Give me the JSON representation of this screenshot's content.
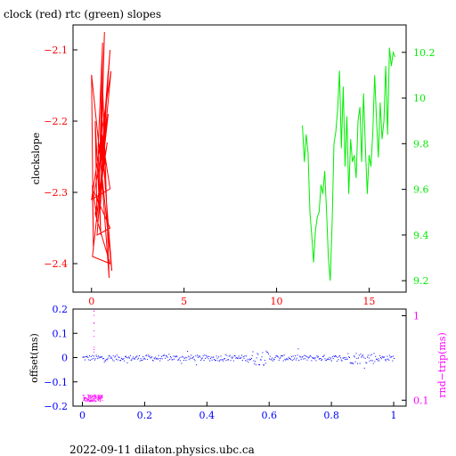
{
  "header": {
    "title": "clock (red) rtc (green) slopes"
  },
  "footer": {
    "text": "2022-09-11 dilaton.physics.ubc.ca"
  },
  "colors": {
    "clock": "#ff0000",
    "rtc": "#00ee00",
    "offset": "#0000ff",
    "rndtrip": "#ff00ff",
    "frame": "#000000"
  },
  "chart_data": [
    {
      "type": "line",
      "name": "slopes",
      "title": "clock (red) rtc (green) slopes",
      "xlabel": "",
      "ylabel": "clockslope",
      "y2label": "",
      "xlim": [
        -1,
        17
      ],
      "ylim": [
        -2.44,
        -2.065
      ],
      "y2lim": [
        9.15,
        10.32
      ],
      "xticks": [
        0,
        5,
        10,
        15
      ],
      "yticks": [
        -2.1,
        -2.2,
        -2.3,
        -2.4
      ],
      "y2ticks": [
        9.2,
        9.4,
        9.6,
        9.8,
        10,
        10.2
      ],
      "ytick_labels": [
        "−2.1",
        "−2.2",
        "−2.3",
        "−2.4"
      ],
      "y2tick_labels": [
        "9.2",
        "9.4",
        "9.6",
        "9.8",
        "10",
        "10.2"
      ],
      "series": [
        {
          "axis": "left",
          "color": "#ff0000",
          "x": [
            0.0,
            0.1,
            0.05,
            0.3,
            0.2,
            0.5,
            0.35,
            0.6,
            0.4,
            0.7,
            0.5,
            0.8,
            0.45,
            0.9,
            0.55,
            0.75,
            0.6,
            0.95,
            0.5,
            1.0,
            0.3,
            1.0,
            0.15,
            0.9,
            0.05,
            1.0,
            0.2,
            0.85,
            0.4,
            1.05,
            0.0,
            1.0,
            0.5,
            1.1,
            0.0
          ],
          "y": [
            -2.135,
            -2.38,
            -2.29,
            -2.34,
            -2.2,
            -2.36,
            -2.24,
            -2.09,
            -2.3,
            -2.075,
            -2.26,
            -2.2,
            -2.33,
            -2.13,
            -2.25,
            -2.28,
            -2.15,
            -2.42,
            -2.26,
            -2.1,
            -2.36,
            -2.35,
            -2.3,
            -2.19,
            -2.39,
            -2.4,
            -2.33,
            -2.23,
            -2.31,
            -2.13,
            -2.31,
            -2.295,
            -2.21,
            -2.41,
            -2.135
          ]
        },
        {
          "axis": "right",
          "color": "#00ee00",
          "x": [
            11.4,
            11.5,
            11.6,
            11.7,
            11.8,
            11.9,
            12.0,
            12.1,
            12.2,
            12.3,
            12.4,
            12.5,
            12.6,
            12.7,
            12.8,
            12.9,
            13.0,
            13.1,
            13.2,
            13.3,
            13.4,
            13.5,
            13.6,
            13.7,
            13.8,
            13.9,
            14.0,
            14.1,
            14.2,
            14.3,
            14.4,
            14.5,
            14.6,
            14.7,
            14.8,
            14.9,
            15.0,
            15.1,
            15.2,
            15.3,
            15.4,
            15.5,
            15.6,
            15.7,
            15.8,
            15.9,
            16.0,
            16.1,
            16.2,
            16.3,
            16.4
          ],
          "y": [
            9.88,
            9.72,
            9.84,
            9.76,
            9.5,
            9.4,
            9.28,
            9.42,
            9.48,
            9.5,
            9.62,
            9.58,
            9.68,
            9.5,
            9.3,
            9.2,
            9.45,
            9.8,
            9.85,
            9.95,
            10.12,
            9.78,
            10.05,
            9.7,
            9.92,
            9.58,
            9.82,
            9.72,
            9.75,
            9.65,
            9.9,
            9.96,
            9.72,
            10.02,
            9.78,
            9.58,
            9.75,
            9.7,
            9.85,
            10.1,
            9.9,
            9.74,
            9.98,
            9.82,
            9.9,
            10.14,
            9.84,
            10.22,
            10.14,
            10.2,
            10.18
          ]
        }
      ]
    },
    {
      "type": "scatter",
      "name": "offset",
      "title": "",
      "xlabel": "",
      "ylabel": "offset(ms)",
      "y2label": "rnd−trip(ms)",
      "xlim": [
        -0.03,
        1.04
      ],
      "ylim": [
        -0.2,
        0.2
      ],
      "y2lim_log": [
        0.085,
        1.2
      ],
      "y2scale": "log",
      "xticks": [
        0,
        0.2,
        0.4,
        0.6,
        0.8,
        1
      ],
      "yticks": [
        0.2,
        0.1,
        0,
        -0.1,
        -0.2
      ],
      "y2ticks": [
        0.1,
        1
      ],
      "ytick_labels": [
        "0.2",
        "0.1",
        "0",
        "−0.1",
        "−0.2"
      ],
      "y2tick_labels": [
        "0.1",
        "1"
      ],
      "series": [
        {
          "name": "offset",
          "color": "#0000ff",
          "axis": "left",
          "x_range": [
            0,
            1
          ],
          "center": 0.0,
          "spread": 0.012
        },
        {
          "name": "rnd-trip",
          "color": "#ff00ff",
          "axis": "right",
          "x_range": [
            0,
            0.065
          ],
          "center_log": 0.107,
          "spread": 0.01
        }
      ]
    }
  ]
}
